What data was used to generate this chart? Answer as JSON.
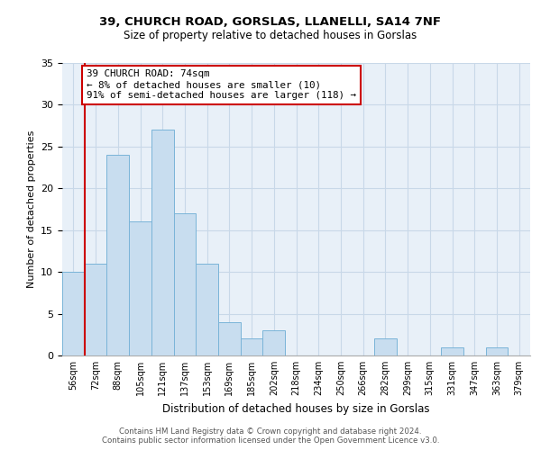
{
  "title1": "39, CHURCH ROAD, GORSLAS, LLANELLI, SA14 7NF",
  "title2": "Size of property relative to detached houses in Gorslas",
  "xlabel": "Distribution of detached houses by size in Gorslas",
  "ylabel": "Number of detached properties",
  "bin_labels": [
    "56sqm",
    "72sqm",
    "88sqm",
    "105sqm",
    "121sqm",
    "137sqm",
    "153sqm",
    "169sqm",
    "185sqm",
    "202sqm",
    "218sqm",
    "234sqm",
    "250sqm",
    "266sqm",
    "282sqm",
    "299sqm",
    "315sqm",
    "331sqm",
    "347sqm",
    "363sqm",
    "379sqm"
  ],
  "bar_heights": [
    10,
    11,
    24,
    16,
    27,
    17,
    11,
    4,
    2,
    3,
    0,
    0,
    0,
    0,
    2,
    0,
    0,
    1,
    0,
    1,
    0
  ],
  "bar_color": "#c8ddef",
  "bar_edge_color": "#7ab4d8",
  "highlight_color": "#cc0000",
  "annotation_title": "39 CHURCH ROAD: 74sqm",
  "annotation_line1": "← 8% of detached houses are smaller (10)",
  "annotation_line2": "91% of semi-detached houses are larger (118) →",
  "annotation_box_color": "#ffffff",
  "annotation_box_edge": "#cc0000",
  "bg_color": "#e8f0f8",
  "ylim": [
    0,
    35
  ],
  "yticks": [
    0,
    5,
    10,
    15,
    20,
    25,
    30,
    35
  ],
  "footer1": "Contains HM Land Registry data © Crown copyright and database right 2024.",
  "footer2": "Contains public sector information licensed under the Open Government Licence v3.0."
}
